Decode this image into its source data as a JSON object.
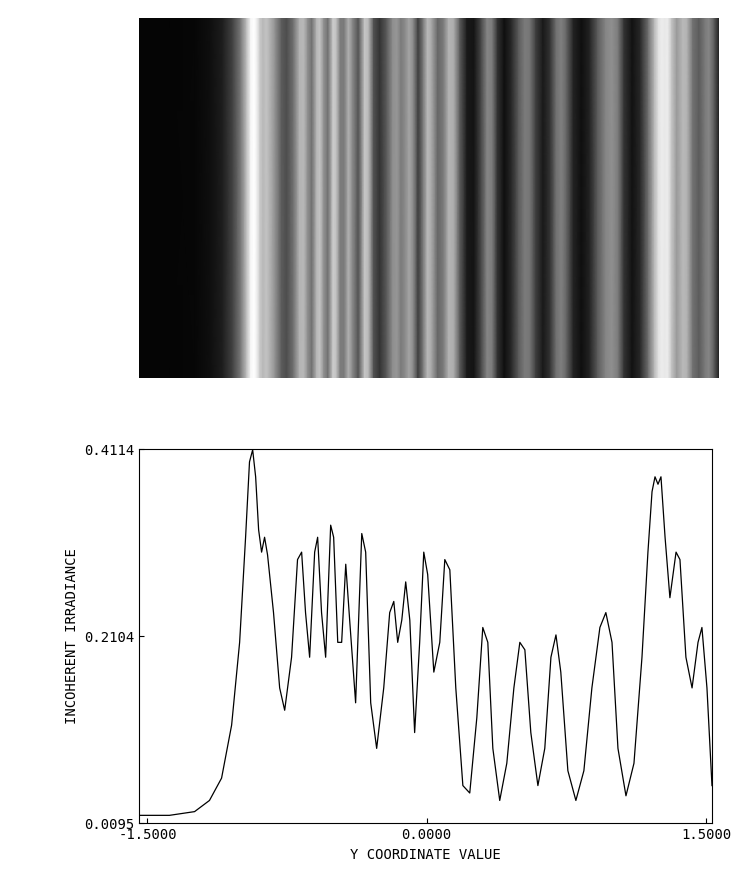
{
  "chart_data": {
    "type": "line",
    "x_label": "Y COORDINATE VALUE",
    "y_label": "INCOHERENT IRRADIANCE",
    "xlim": [
      -1.543,
      1.532
    ],
    "ylim": [
      0.0095,
      0.4114
    ],
    "xticks": [
      {
        "value": -1.5,
        "label": "-1.5000"
      },
      {
        "value": 0.0,
        "label": "0.0000"
      },
      {
        "value": 1.5,
        "label": "1.5000"
      }
    ],
    "yticks": [
      0.0095,
      0.2104,
      0.4114
    ],
    "color": "#000000",
    "grid": false,
    "x": [
      -1.543,
      -1.382,
      -1.247,
      -1.167,
      -1.102,
      -1.048,
      -1.005,
      -0.973,
      -0.952,
      -0.935,
      -0.919,
      -0.903,
      -0.887,
      -0.871,
      -0.855,
      -0.823,
      -0.79,
      -0.763,
      -0.726,
      -0.694,
      -0.672,
      -0.651,
      -0.629,
      -0.602,
      -0.586,
      -0.565,
      -0.543,
      -0.516,
      -0.5,
      -0.478,
      -0.457,
      -0.435,
      -0.414,
      -0.382,
      -0.349,
      -0.328,
      -0.301,
      -0.269,
      -0.231,
      -0.199,
      -0.177,
      -0.156,
      -0.134,
      -0.113,
      -0.091,
      -0.065,
      -0.038,
      -0.016,
      0.005,
      0.038,
      0.07,
      0.097,
      0.124,
      0.156,
      0.194,
      0.231,
      0.269,
      0.301,
      0.328,
      0.355,
      0.392,
      0.43,
      0.468,
      0.5,
      0.527,
      0.559,
      0.597,
      0.634,
      0.667,
      0.694,
      0.72,
      0.758,
      0.801,
      0.844,
      0.887,
      0.93,
      0.962,
      0.995,
      1.027,
      1.07,
      1.113,
      1.156,
      1.188,
      1.21,
      1.226,
      1.242,
      1.258,
      1.28,
      1.306,
      1.339,
      1.36,
      1.392,
      1.425,
      1.457,
      1.478,
      1.505,
      1.532
    ],
    "values": [
      0.018,
      0.018,
      0.022,
      0.034,
      0.058,
      0.115,
      0.204,
      0.317,
      0.398,
      0.411,
      0.382,
      0.325,
      0.301,
      0.317,
      0.298,
      0.236,
      0.155,
      0.131,
      0.188,
      0.293,
      0.301,
      0.236,
      0.188,
      0.301,
      0.317,
      0.236,
      0.188,
      0.33,
      0.317,
      0.204,
      0.204,
      0.288,
      0.228,
      0.139,
      0.321,
      0.301,
      0.139,
      0.09,
      0.155,
      0.236,
      0.248,
      0.204,
      0.228,
      0.269,
      0.228,
      0.107,
      0.204,
      0.301,
      0.277,
      0.172,
      0.204,
      0.293,
      0.282,
      0.155,
      0.05,
      0.042,
      0.123,
      0.22,
      0.204,
      0.09,
      0.034,
      0.074,
      0.155,
      0.204,
      0.196,
      0.107,
      0.05,
      0.09,
      0.188,
      0.212,
      0.172,
      0.066,
      0.034,
      0.066,
      0.155,
      0.22,
      0.236,
      0.204,
      0.09,
      0.039,
      0.074,
      0.188,
      0.301,
      0.366,
      0.382,
      0.374,
      0.382,
      0.317,
      0.252,
      0.301,
      0.293,
      0.188,
      0.155,
      0.204,
      0.22,
      0.155,
      0.05
    ]
  }
}
